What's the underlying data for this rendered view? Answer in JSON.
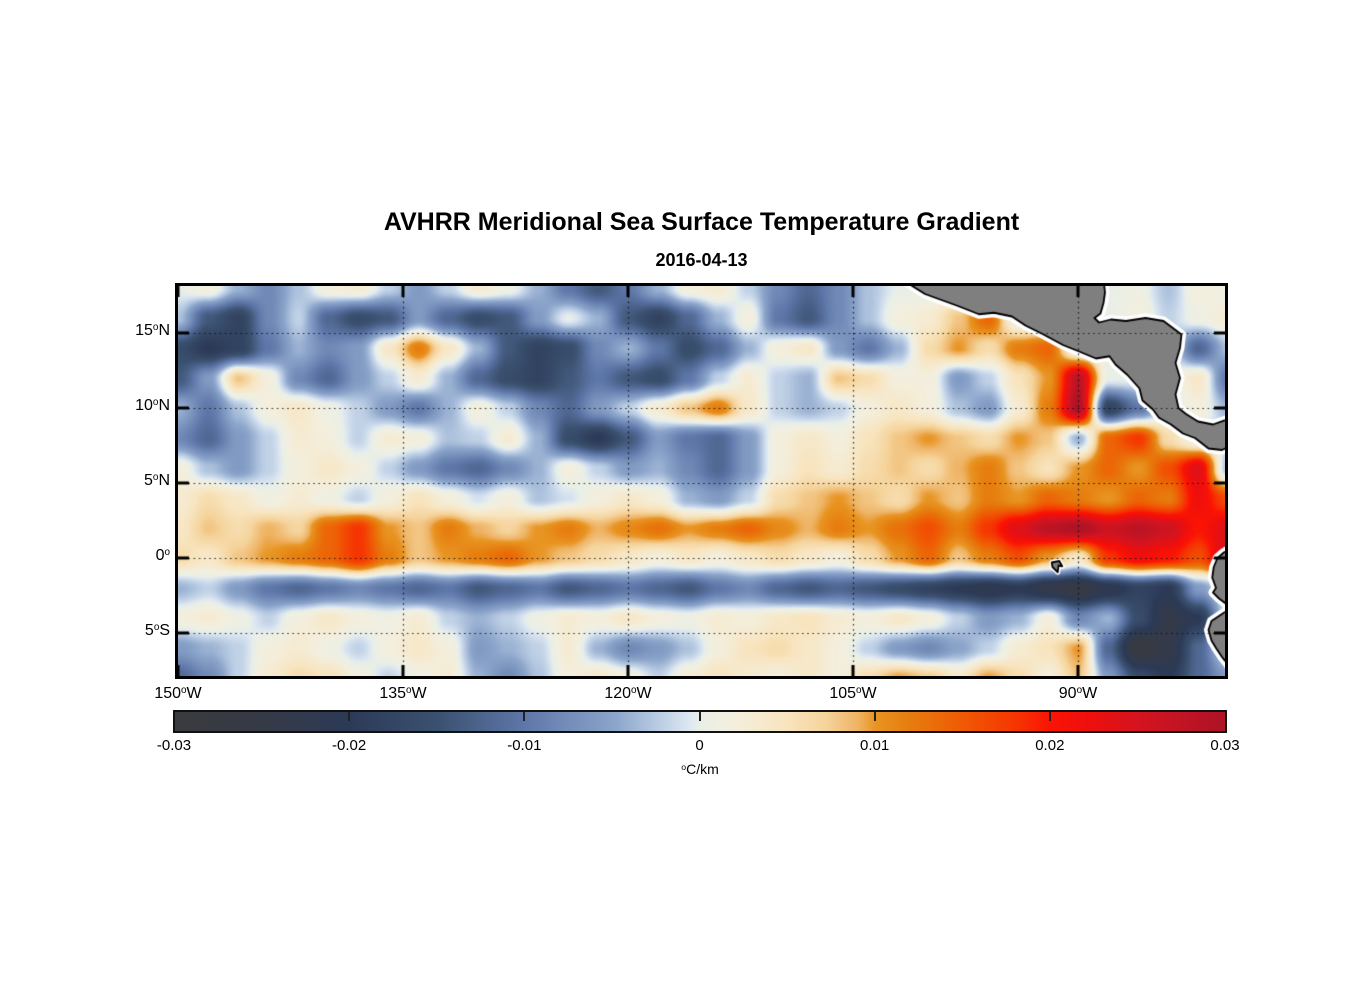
{
  "title": "AVHRR Meridional Sea Surface Temperature Gradient",
  "subtitle": "2016-04-13",
  "map": {
    "xticks": [
      {
        "num": "150",
        "sup": "o",
        "suf": "W",
        "lon": -150
      },
      {
        "num": "135",
        "sup": "o",
        "suf": "W",
        "lon": -135
      },
      {
        "num": "120",
        "sup": "o",
        "suf": "W",
        "lon": -120
      },
      {
        "num": "105",
        "sup": "o",
        "suf": "W",
        "lon": -105
      },
      {
        "num": "90",
        "sup": "o",
        "suf": "W",
        "lon": -90
      }
    ],
    "yticks": [
      {
        "num": "15",
        "sup": "o",
        "suf": "N",
        "lat": 15
      },
      {
        "num": "10",
        "sup": "o",
        "suf": "N",
        "lat": 10
      },
      {
        "num": "5",
        "sup": "o",
        "suf": "N",
        "lat": 5
      },
      {
        "num": "0",
        "sup": "o",
        "suf": "",
        "lat": 0
      },
      {
        "num": "5",
        "sup": "o",
        "suf": "S",
        "lat": -5
      }
    ],
    "grid_lons": [
      -135,
      -120,
      -105,
      -90
    ],
    "grid_lats": [
      15,
      10,
      5,
      0,
      -5
    ]
  },
  "colorbar": {
    "ticks": [
      {
        "label": "-0.03",
        "value": -0.03
      },
      {
        "label": "-0.02",
        "value": -0.02
      },
      {
        "label": "-0.01",
        "value": -0.01
      },
      {
        "label": "0",
        "value": 0
      },
      {
        "label": "0.01",
        "value": 0.01
      },
      {
        "label": "0.02",
        "value": 0.02
      },
      {
        "label": "0.03",
        "value": 0.03
      }
    ],
    "unit_sup": "o",
    "unit_text": "C/km",
    "range": [
      -0.03,
      0.03
    ]
  },
  "chart_data": {
    "type": "heatmap",
    "variable": "AVHRR meridional sea surface temperature gradient",
    "date": "2016-04-13",
    "units": "°C/km",
    "value_scale": 0.001,
    "value_range": [
      -0.03,
      0.03
    ],
    "lon_range": [
      -150,
      -80.2
    ],
    "lat_range": [
      -7.87,
      18.13
    ],
    "lons": [
      -150,
      -148,
      -146,
      -144,
      -142,
      -140,
      -138,
      -136,
      -134,
      -132,
      -130,
      -128,
      -126,
      -124,
      -122,
      -120,
      -118,
      -116,
      -114,
      -112,
      -110,
      -108,
      -106,
      -104,
      -102,
      -100,
      -98,
      -96,
      -94,
      -92,
      -90,
      -88,
      -86,
      -84,
      -82,
      -80
    ],
    "lats": [
      18,
      16,
      14,
      12,
      10,
      8,
      6,
      4,
      2,
      0,
      -2,
      -4,
      -6,
      -8
    ],
    "values": [
      [
        0,
        2,
        -4,
        -8,
        -3,
        2,
        3,
        -2,
        -6,
        -2,
        3,
        1,
        -4,
        -10,
        -14,
        -10,
        -4,
        2,
        3,
        -2,
        -8,
        -12,
        -8,
        -3,
        0,
        0,
        0,
        0,
        0,
        0,
        0,
        0,
        1,
        -3,
        2,
        1
      ],
      [
        -3,
        -14,
        -18,
        -8,
        -2,
        -12,
        -16,
        -14,
        -6,
        -12,
        -16,
        -14,
        -6,
        0,
        -4,
        -14,
        -18,
        -12,
        -4,
        2,
        -10,
        -14,
        -8,
        -3,
        2,
        3,
        8,
        14,
        0,
        0,
        0,
        0,
        2,
        -2,
        1,
        3
      ],
      [
        -16,
        -20,
        -18,
        -10,
        -4,
        -8,
        -6,
        4,
        12,
        4,
        -4,
        -14,
        -18,
        -16,
        -8,
        -4,
        -10,
        -16,
        -12,
        -4,
        2,
        4,
        -6,
        -10,
        -4,
        6,
        10,
        6,
        12,
        14,
        0,
        0,
        0,
        0,
        -12,
        -3
      ],
      [
        -14,
        -6,
        8,
        2,
        -8,
        -12,
        -6,
        -2,
        3,
        -4,
        -12,
        -16,
        -18,
        -14,
        -10,
        -14,
        -16,
        -10,
        -2,
        3,
        -2,
        -4,
        8,
        6,
        2,
        2,
        -6,
        -2,
        5,
        10,
        28,
        0,
        0,
        0,
        4,
        -10
      ],
      [
        -4,
        -10,
        -3,
        2,
        4,
        1,
        -2,
        -6,
        -10,
        -4,
        2,
        -2,
        -8,
        -12,
        -6,
        -2,
        3,
        8,
        12,
        4,
        -2,
        -4,
        -2,
        2,
        4,
        2,
        -3,
        -6,
        3,
        12,
        30,
        -18,
        -10,
        0,
        2,
        -4
      ],
      [
        -8,
        -12,
        -6,
        -2,
        3,
        2,
        -2,
        3,
        2,
        -3,
        -2,
        3,
        -4,
        -16,
        -20,
        -14,
        -6,
        -10,
        -12,
        -6,
        2,
        4,
        2,
        5,
        8,
        10,
        8,
        6,
        10,
        8,
        -4,
        14,
        18,
        6,
        0,
        0
      ],
      [
        2,
        -3,
        -6,
        -2,
        2,
        4,
        2,
        -2,
        -6,
        -10,
        -12,
        -8,
        -4,
        2,
        -2,
        -6,
        -4,
        -8,
        -12,
        -6,
        2,
        5,
        3,
        6,
        8,
        6,
        9,
        12,
        8,
        5,
        10,
        14,
        10,
        16,
        24,
        -4
      ],
      [
        3,
        6,
        4,
        1,
        3,
        1,
        -2,
        2,
        5,
        2,
        -1,
        2,
        -3,
        -1,
        2,
        4,
        2,
        -4,
        -6,
        -2,
        6,
        8,
        10,
        8,
        6,
        10,
        8,
        12,
        10,
        14,
        12,
        10,
        14,
        12,
        22,
        16
      ],
      [
        4,
        8,
        6,
        9,
        7,
        14,
        18,
        10,
        8,
        12,
        9,
        7,
        10,
        12,
        9,
        11,
        13,
        10,
        12,
        14,
        11,
        9,
        12,
        10,
        13,
        16,
        12,
        18,
        24,
        28,
        30,
        26,
        28,
        26,
        20,
        24
      ],
      [
        6,
        4,
        8,
        10,
        12,
        14,
        18,
        12,
        8,
        10,
        12,
        14,
        10,
        8,
        6,
        4,
        2,
        4,
        2,
        4,
        6,
        4,
        2,
        6,
        10,
        14,
        8,
        12,
        16,
        10,
        4,
        18,
        22,
        20,
        16,
        26
      ],
      [
        -4,
        -2,
        -6,
        -10,
        -12,
        -10,
        -8,
        -10,
        -12,
        -10,
        -14,
        -12,
        -10,
        -14,
        -12,
        -10,
        -12,
        -14,
        -10,
        -8,
        -12,
        -14,
        -12,
        -14,
        -16,
        -18,
        -20,
        -22,
        -20,
        -24,
        -26,
        -22,
        -18,
        -20,
        -6,
        0
      ],
      [
        2,
        3,
        1,
        -2,
        2,
        4,
        2,
        1,
        3,
        -2,
        -4,
        -2,
        1,
        3,
        2,
        4,
        2,
        1,
        3,
        2,
        4,
        5,
        3,
        2,
        4,
        2,
        -2,
        -6,
        -4,
        2,
        -8,
        -4,
        -16,
        -24,
        -20,
        0
      ],
      [
        -6,
        -4,
        -2,
        2,
        3,
        1,
        -2,
        2,
        4,
        2,
        -6,
        -4,
        -2,
        3,
        -4,
        -8,
        -6,
        -3,
        2,
        5,
        6,
        4,
        2,
        -2,
        -6,
        -8,
        -5,
        -2,
        3,
        5,
        10,
        -12,
        -28,
        -24,
        -12,
        0
      ],
      [
        -12,
        -8,
        -2,
        3,
        6,
        5,
        2,
        -2,
        1,
        3,
        -4,
        -8,
        -3,
        2,
        4,
        2,
        -2,
        3,
        5,
        3,
        2,
        4,
        2,
        6,
        10,
        8,
        4,
        10,
        6,
        2,
        8,
        -6,
        -16,
        -20,
        -12,
        -6
      ]
    ],
    "colormap_stops": [
      [
        0.0,
        "#3a3b3e"
      ],
      [
        0.08,
        "#363a46"
      ],
      [
        0.167,
        "#2c3a57"
      ],
      [
        0.25,
        "#3b5170"
      ],
      [
        0.333,
        "#5e77a9"
      ],
      [
        0.42,
        "#8ca5cb"
      ],
      [
        0.46,
        "#b9cce3"
      ],
      [
        0.49,
        "#dde7f2"
      ],
      [
        0.5,
        "#e9efe7"
      ],
      [
        0.53,
        "#f3efdf"
      ],
      [
        0.58,
        "#f8e5c0"
      ],
      [
        0.62,
        "#f5d49c"
      ],
      [
        0.65,
        "#efb465"
      ],
      [
        0.667,
        "#e89422"
      ],
      [
        0.7,
        "#e67d0e"
      ],
      [
        0.75,
        "#ef5a04"
      ],
      [
        0.8,
        "#f63502"
      ],
      [
        0.833,
        "#fb1404"
      ],
      [
        0.87,
        "#ee0f0d"
      ],
      [
        0.92,
        "#d31420"
      ],
      [
        1.0,
        "#ad1326"
      ]
    ],
    "land": {
      "fill": "#7f7f7f",
      "outline": "#000000",
      "coast_halo": "#ffffff",
      "polygons": {
        "central_america": [
          [
            -101.8,
            18.6
          ],
          [
            -100.2,
            17.6
          ],
          [
            -98,
            16.8
          ],
          [
            -96.6,
            16.25
          ],
          [
            -95.6,
            16.35
          ],
          [
            -94.4,
            16.1
          ],
          [
            -93.5,
            15.5
          ],
          [
            -92.3,
            14.9
          ],
          [
            -91,
            14.2
          ],
          [
            -90,
            13.8
          ],
          [
            -88.8,
            13.3
          ],
          [
            -87.9,
            13.45
          ],
          [
            -87.5,
            12.9
          ],
          [
            -86.7,
            12.2
          ],
          [
            -85.9,
            11.3
          ],
          [
            -85.7,
            10.5
          ],
          [
            -85,
            9.9
          ],
          [
            -84.6,
            9.35
          ],
          [
            -83.8,
            8.9
          ],
          [
            -83,
            8.3
          ],
          [
            -82.2,
            8
          ],
          [
            -81.3,
            7.3
          ],
          [
            -80.4,
            7.2
          ],
          [
            -79.6,
            7.6
          ],
          [
            -79.6,
            9.4
          ],
          [
            -81,
            8.9
          ],
          [
            -82,
            9.1
          ],
          [
            -82.8,
            9.6
          ],
          [
            -83.3,
            10
          ],
          [
            -83.5,
            10.9
          ],
          [
            -83.2,
            12
          ],
          [
            -83.5,
            13
          ],
          [
            -83.2,
            14
          ],
          [
            -83.1,
            14.9
          ],
          [
            -84.3,
            15.8
          ],
          [
            -85.5,
            16
          ],
          [
            -86.8,
            15.8
          ],
          [
            -87.8,
            15.9
          ],
          [
            -88.6,
            15.7
          ],
          [
            -88.9,
            16
          ],
          [
            -88.5,
            16.3
          ],
          [
            -88.3,
            17
          ],
          [
            -88.2,
            17.7
          ],
          [
            -88.3,
            18.6
          ]
        ],
        "south_america": [
          [
            -79.6,
            0.8
          ],
          [
            -80.3,
            0.35
          ],
          [
            -80.7,
            0
          ],
          [
            -80.95,
            -0.6
          ],
          [
            -81.05,
            -1.3
          ],
          [
            -80.8,
            -2
          ],
          [
            -81,
            -2.3
          ],
          [
            -80.6,
            -2.7
          ],
          [
            -80.2,
            -3
          ],
          [
            -79.9,
            -3.4
          ],
          [
            -80.5,
            -3.8
          ],
          [
            -81.1,
            -4.2
          ],
          [
            -81.3,
            -4.8
          ],
          [
            -81.1,
            -5.5
          ],
          [
            -80.8,
            -6
          ],
          [
            -80.4,
            -6.6
          ],
          [
            -80,
            -7.1
          ],
          [
            -79.6,
            -7.9
          ]
        ],
        "galapagos": [
          [
            -91.75,
            -0.3
          ],
          [
            -91.25,
            -0.2
          ],
          [
            -91.05,
            -0.55
          ],
          [
            -91.3,
            -0.5
          ],
          [
            -91.35,
            -0.95
          ],
          [
            -91.7,
            -0.6
          ]
        ]
      }
    }
  }
}
